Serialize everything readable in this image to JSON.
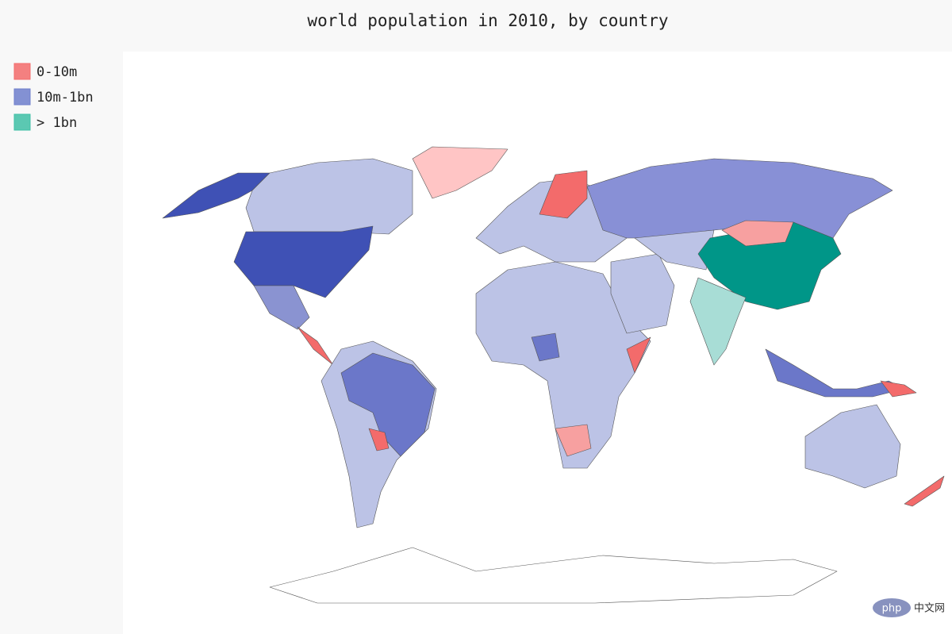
{
  "title": "world population in 2010, by country",
  "legend": [
    {
      "name": "0-10m",
      "color": "#f36b6b"
    },
    {
      "name": "10m-1bn",
      "color": "#6f7fcd"
    },
    {
      "name": "> 1bn",
      "color": "#3fbfa6"
    }
  ],
  "watermark": {
    "logo": "php",
    "text": "中文网"
  }
}
